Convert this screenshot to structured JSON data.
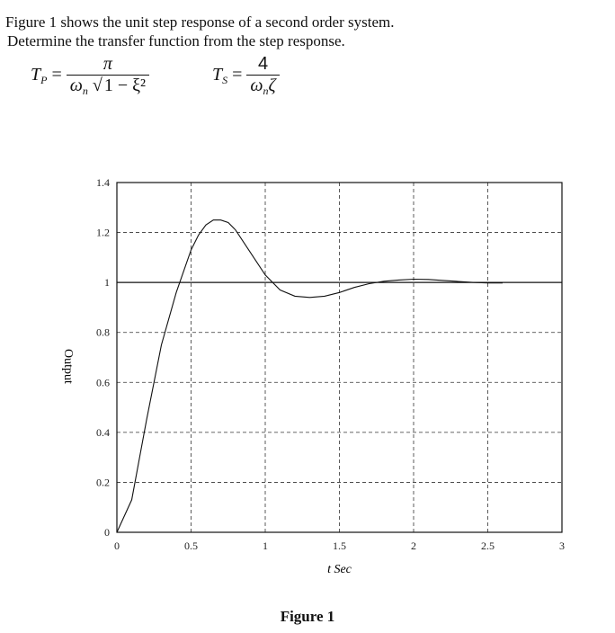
{
  "intro": {
    "line1": "Figure 1 shows the unit step response of a second order system.",
    "line2": "Determine the transfer function from the step response."
  },
  "formulas": {
    "tp": {
      "lhs": "T",
      "lhs_sub": "P",
      "eq": "=",
      "numerator": "π",
      "den_omega": "ω",
      "den_sub": "n",
      "den_rad": "1 − ξ²"
    },
    "ts": {
      "lhs": "T",
      "lhs_sub": "S",
      "eq": "=",
      "numerator": "4",
      "den_omega": "ω",
      "den_sub": "n",
      "den_tail": "ζ"
    }
  },
  "chart_data": {
    "type": "line",
    "xlabel": "t Sec",
    "ylabel": "Output",
    "xlim": [
      0,
      3
    ],
    "ylim": [
      0,
      1.4
    ],
    "xticks": [
      "0",
      "0.5",
      "1",
      "1.5",
      "2",
      "2.5",
      "3"
    ],
    "xtick_values": [
      0,
      0.5,
      1,
      1.5,
      2,
      2.5,
      3
    ],
    "yticks": [
      "0",
      "0.2",
      "0.4",
      "0.6",
      "0.8",
      "1",
      "1.2",
      "1.4"
    ],
    "ytick_values": [
      0,
      0.2,
      0.4,
      0.6,
      0.8,
      1,
      1.2,
      1.4
    ],
    "grid": true,
    "reference_line": 1,
    "series": [
      {
        "x": [
          0,
          0.1,
          0.2,
          0.3,
          0.4,
          0.5,
          0.55,
          0.6,
          0.65,
          0.7,
          0.75,
          0.8,
          0.9,
          1.0,
          1.1,
          1.2,
          1.3,
          1.4,
          1.5,
          1.6,
          1.7,
          1.8,
          1.9,
          2.0,
          2.1,
          2.2,
          2.3,
          2.4,
          2.5,
          2.6
        ],
        "y": [
          0,
          0.13,
          0.45,
          0.75,
          0.96,
          1.13,
          1.19,
          1.23,
          1.25,
          1.25,
          1.24,
          1.21,
          1.12,
          1.03,
          0.97,
          0.945,
          0.94,
          0.945,
          0.96,
          0.98,
          0.995,
          1.005,
          1.01,
          1.013,
          1.012,
          1.008,
          1.004,
          1.0,
          0.998,
          0.998
        ]
      }
    ]
  },
  "caption": "Figure 1"
}
